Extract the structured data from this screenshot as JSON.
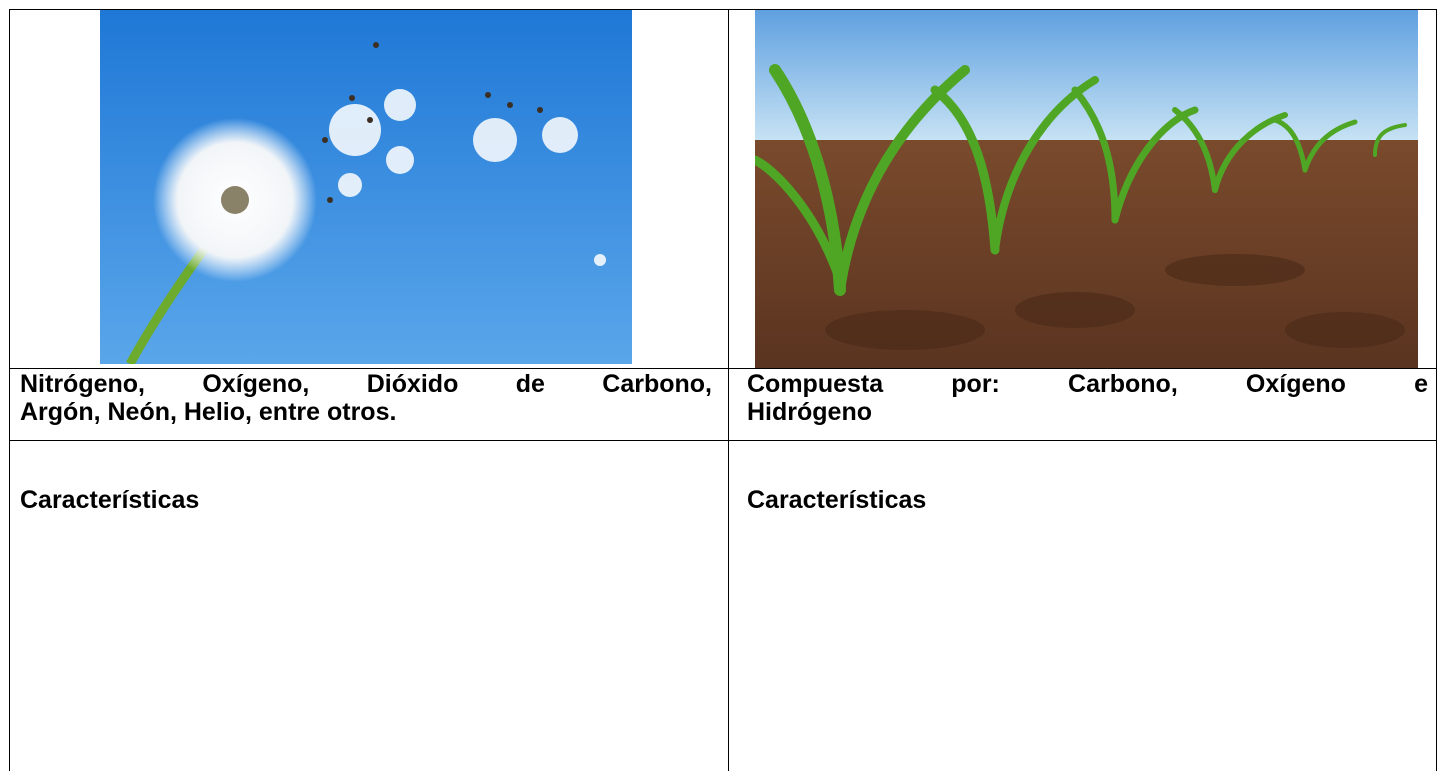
{
  "columns": [
    {
      "composition_lines": [
        "Nitrógeno, Oxígeno, Dióxido de Carbono,",
        "Argón, Neón,  Helio, entre otros."
      ],
      "characteristics_heading": "Características"
    },
    {
      "composition_lines": [
        "Compuesta por: Carbono, Oxígeno e",
        "Hidrógeno"
      ],
      "characteristics_heading": "Características"
    }
  ]
}
